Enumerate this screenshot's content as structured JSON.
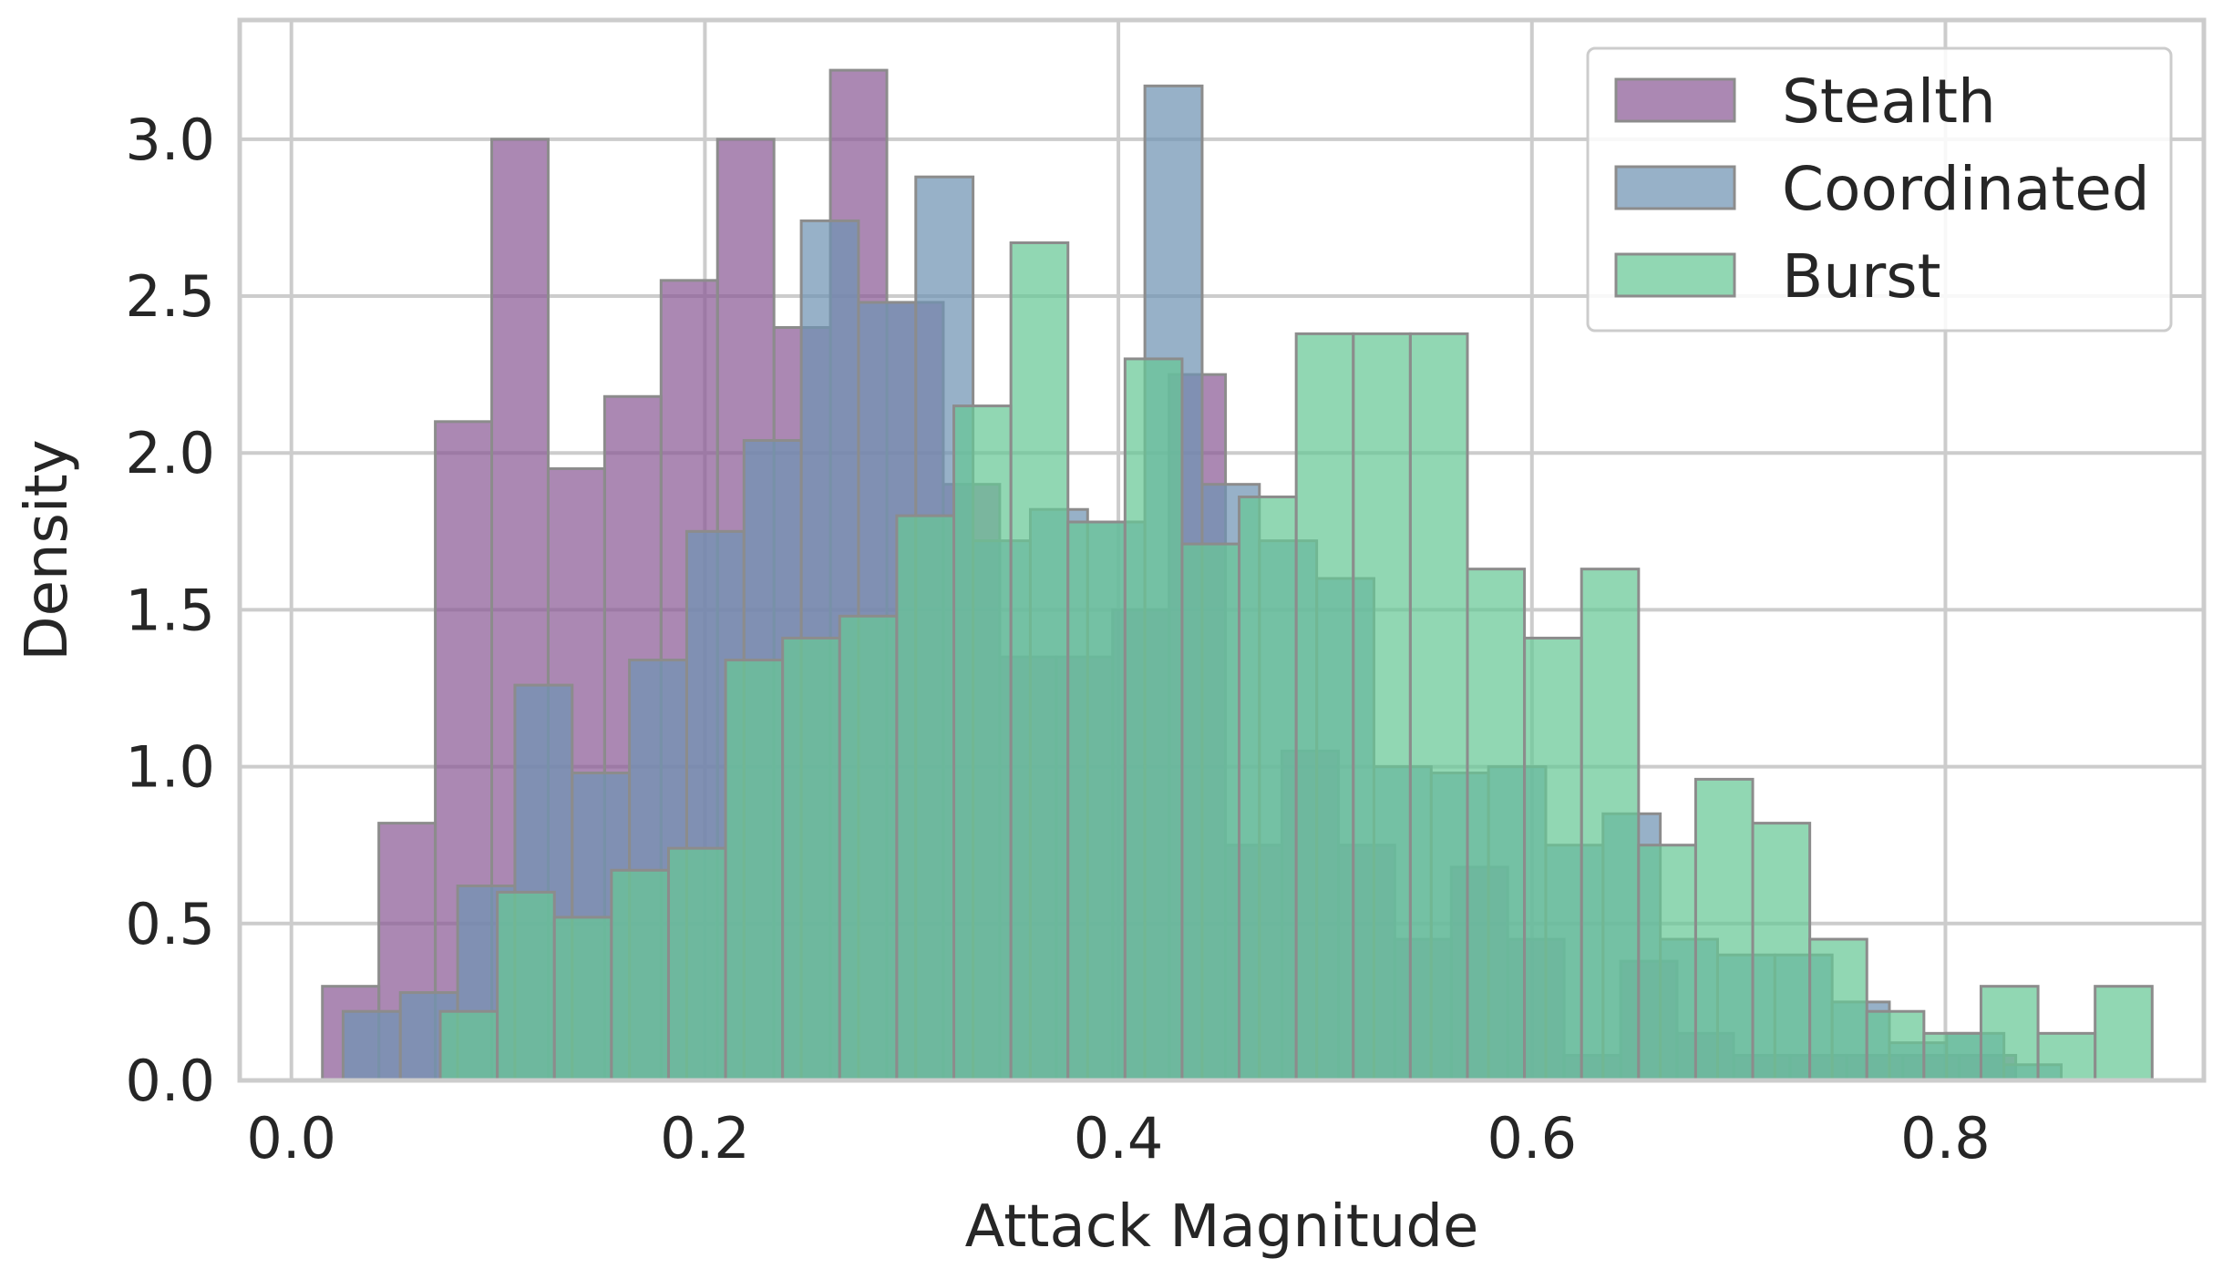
{
  "chart_data": {
    "type": "histogram",
    "xlabel": "Attack Magnitude",
    "ylabel": "Density",
    "xlim": [
      -0.025,
      0.925
    ],
    "ylim": [
      0,
      3.38
    ],
    "xticks": [
      0.0,
      0.2,
      0.4,
      0.6,
      0.8
    ],
    "yticks": [
      0.0,
      0.5,
      1.0,
      1.5,
      2.0,
      2.5,
      3.0
    ],
    "x_tick_labels": [
      "0.0",
      "0.2",
      "0.4",
      "0.6",
      "0.8"
    ],
    "y_tick_labels": [
      "0.0",
      "0.5",
      "1.0",
      "1.5",
      "2.0",
      "2.5",
      "3.0"
    ],
    "grid": true,
    "legend_position": "top-right",
    "series": [
      {
        "name": "Stealth",
        "color": "#8b5a96",
        "bin_edges": [
          0.015,
          0.0423,
          0.0696,
          0.0969,
          0.1242,
          0.1515,
          0.1788,
          0.2061,
          0.2334,
          0.2607,
          0.288,
          0.3153,
          0.3426,
          0.3699,
          0.3972,
          0.4245,
          0.4518,
          0.4791,
          0.5064,
          0.5337,
          0.561,
          0.5883,
          0.6156,
          0.6429,
          0.6702,
          0.6975,
          0.7248,
          0.7521,
          0.7794,
          0.8067,
          0.834
        ],
        "values": [
          0.3,
          0.82,
          2.1,
          3.0,
          1.95,
          2.18,
          2.55,
          3.0,
          2.4,
          3.22,
          2.48,
          1.9,
          1.35,
          1.35,
          1.5,
          2.25,
          0.75,
          1.05,
          0.75,
          0.45,
          0.68,
          0.45,
          0.08,
          0.38,
          0.15,
          0.08,
          0.08,
          0.08,
          0.08,
          0.08
        ]
      },
      {
        "name": "Coordinated",
        "color": "#6f93b3",
        "bin_edges": [
          0.025,
          0.0527,
          0.0804,
          0.1081,
          0.1358,
          0.1635,
          0.1912,
          0.2189,
          0.2466,
          0.2743,
          0.302,
          0.3297,
          0.3574,
          0.3851,
          0.4128,
          0.4405,
          0.4682,
          0.4959,
          0.5236,
          0.5513,
          0.579,
          0.6067,
          0.6344,
          0.6621,
          0.6898,
          0.7175,
          0.7452,
          0.7729,
          0.8006,
          0.8283,
          0.856
        ],
        "values": [
          0.22,
          0.28,
          0.62,
          1.26,
          0.98,
          1.34,
          1.75,
          2.04,
          2.74,
          2.48,
          2.88,
          1.72,
          1.82,
          1.78,
          3.17,
          1.9,
          1.72,
          1.6,
          1.0,
          0.98,
          1.0,
          0.75,
          0.85,
          0.45,
          0.4,
          0.4,
          0.25,
          0.12,
          0.15,
          0.05
        ]
      },
      {
        "name": "Burst",
        "color": "#66c795",
        "bin_edges": [
          0.072,
          0.0996,
          0.1272,
          0.1548,
          0.1824,
          0.21,
          0.2376,
          0.2652,
          0.2928,
          0.3204,
          0.348,
          0.3756,
          0.4032,
          0.4308,
          0.4584,
          0.486,
          0.5136,
          0.5412,
          0.5688,
          0.5964,
          0.624,
          0.6516,
          0.6792,
          0.7068,
          0.7344,
          0.762,
          0.7896,
          0.8172,
          0.8448,
          0.8724,
          0.9
        ],
        "values": [
          0.22,
          0.6,
          0.52,
          0.67,
          0.74,
          1.34,
          1.41,
          1.48,
          1.8,
          2.15,
          2.67,
          1.78,
          2.3,
          1.71,
          1.86,
          2.38,
          2.38,
          2.38,
          1.63,
          1.41,
          1.63,
          0.75,
          0.96,
          0.82,
          0.45,
          0.22,
          0.15,
          0.3,
          0.15,
          0.3
        ]
      }
    ]
  }
}
